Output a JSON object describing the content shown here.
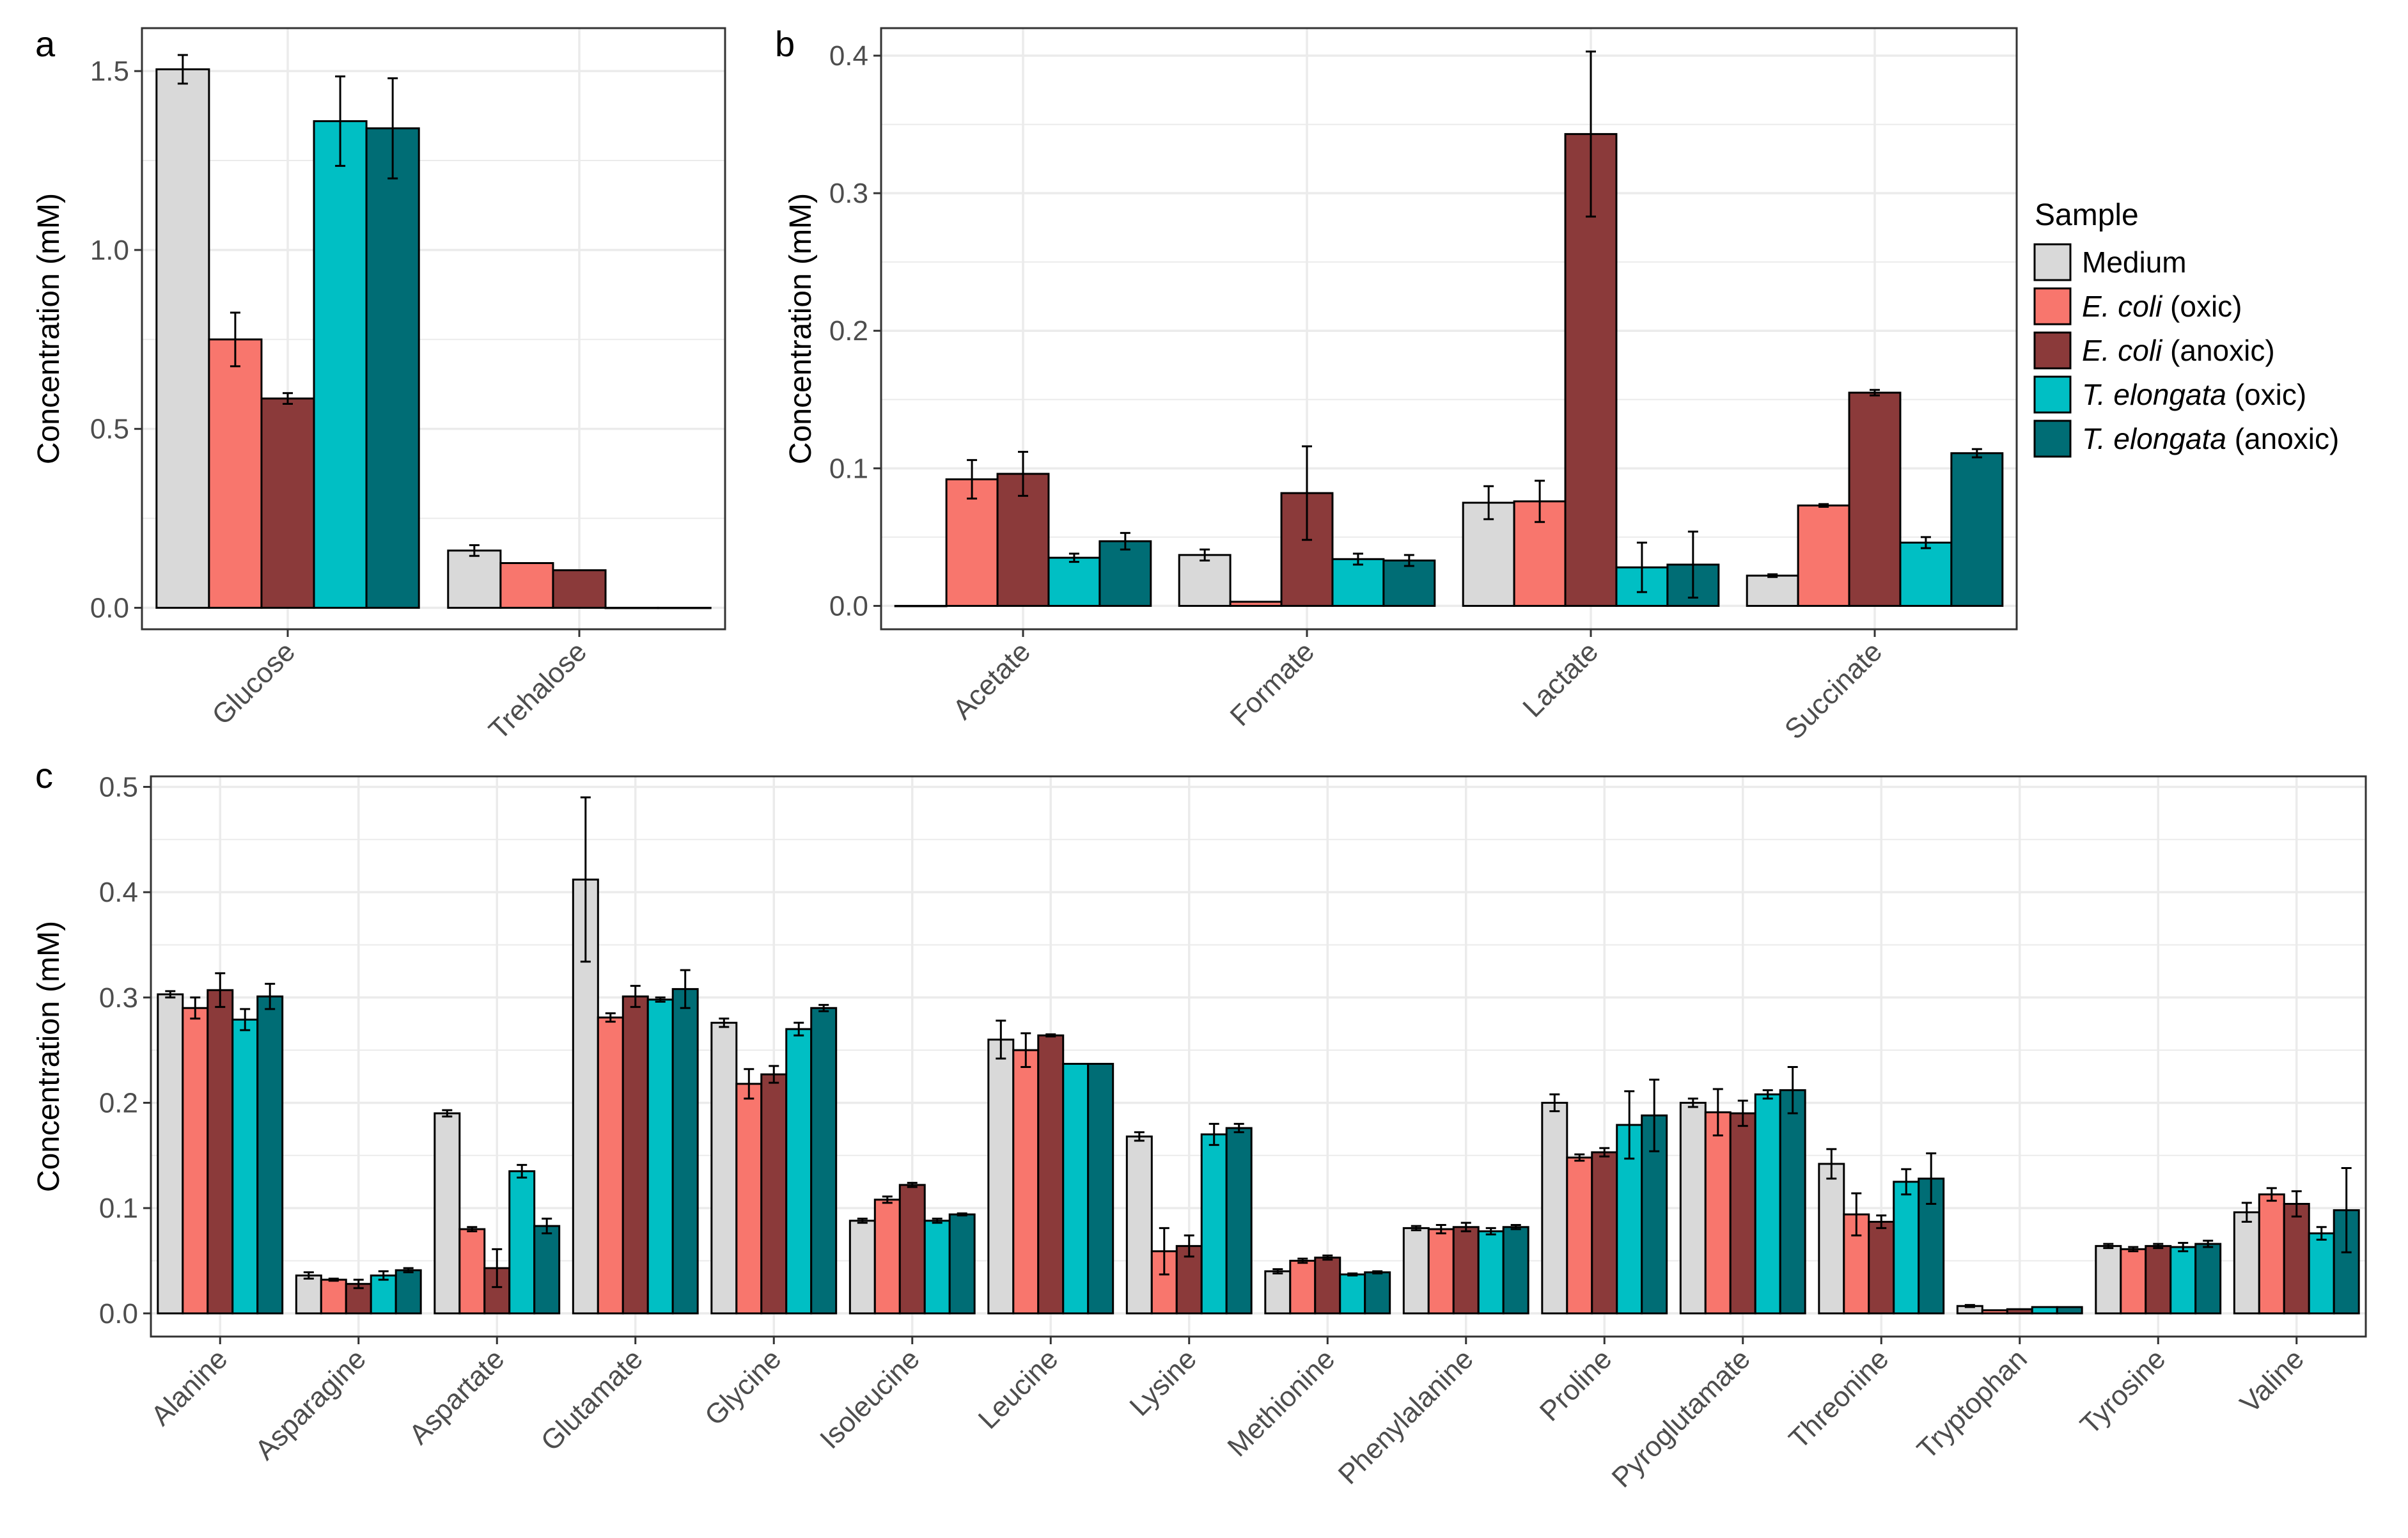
{
  "colors": {
    "Medium": "#d9d9d9",
    "E. coli (oxic)": "#f8766d",
    "E. coli (anoxic)": "#8b3a3a",
    "T. elongata (oxic)": "#00bfc4",
    "T. elongata (anoxic)": "#006d75",
    "grid": "#ebebeb",
    "frame": "#333333",
    "bar_outline": "#000000"
  },
  "legend": {
    "title": "Sample",
    "items": [
      {
        "key": "Medium",
        "italic": "",
        "rest": "Medium"
      },
      {
        "key": "E. coli (oxic)",
        "italic": "E. coli",
        "rest": " (oxic)"
      },
      {
        "key": "E. coli (anoxic)",
        "italic": "E. coli",
        "rest": " (anoxic)"
      },
      {
        "key": "T. elongata (oxic)",
        "italic": "T. elongata",
        "rest": " (oxic)"
      },
      {
        "key": "T. elongata (anoxic)",
        "italic": "T. elongata",
        "rest": " (anoxic)"
      }
    ]
  },
  "chart_data": [
    {
      "panel": "a",
      "type": "bar",
      "ylabel": "Concentration (mM)",
      "ylim": [
        -0.06,
        1.62
      ],
      "yticks": [
        0.0,
        0.5,
        1.0,
        1.5
      ],
      "ytick_labels": [
        "0.0",
        "0.5",
        "1.0",
        "1.5"
      ],
      "categories": [
        "Glucose",
        "Trehalose"
      ],
      "series": [
        {
          "name": "Medium",
          "values": [
            1.505,
            0.16
          ],
          "errors": [
            0.04,
            0.015
          ]
        },
        {
          "name": "E. coli (oxic)",
          "values": [
            0.75,
            0.125
          ],
          "errors": [
            0.075,
            0.0
          ]
        },
        {
          "name": "E. coli (anoxic)",
          "values": [
            0.585,
            0.105
          ],
          "errors": [
            0.015,
            0.0
          ]
        },
        {
          "name": "T. elongata (oxic)",
          "values": [
            1.36,
            0.0
          ],
          "errors": [
            0.125,
            0.0
          ]
        },
        {
          "name": "T. elongata (anoxic)",
          "values": [
            1.34,
            0.0
          ],
          "errors": [
            0.14,
            0.0
          ]
        }
      ]
    },
    {
      "panel": "b",
      "type": "bar",
      "ylabel": "Concentration (mM)",
      "ylim": [
        -0.017,
        0.42
      ],
      "yticks": [
        0.0,
        0.1,
        0.2,
        0.3,
        0.4
      ],
      "ytick_labels": [
        "0.0",
        "0.1",
        "0.2",
        "0.3",
        "0.4"
      ],
      "categories": [
        "Acetate",
        "Formate",
        "Lactate",
        "Succinate"
      ],
      "series": [
        {
          "name": "Medium",
          "values": [
            0.0,
            0.037,
            0.075,
            0.022
          ],
          "errors": [
            0.0,
            0.004,
            0.012,
            0.001
          ]
        },
        {
          "name": "E. coli (oxic)",
          "values": [
            0.092,
            0.003,
            0.076,
            0.073
          ],
          "errors": [
            0.014,
            0.0,
            0.015,
            0.001
          ]
        },
        {
          "name": "E. coli (anoxic)",
          "values": [
            0.096,
            0.082,
            0.343,
            0.155
          ],
          "errors": [
            0.016,
            0.034,
            0.06,
            0.002
          ]
        },
        {
          "name": "T. elongata (oxic)",
          "values": [
            0.035,
            0.034,
            0.028,
            0.046
          ],
          "errors": [
            0.003,
            0.004,
            0.018,
            0.004
          ]
        },
        {
          "name": "T. elongata (anoxic)",
          "values": [
            0.047,
            0.033,
            0.03,
            0.111
          ],
          "errors": [
            0.006,
            0.004,
            0.024,
            0.003
          ]
        }
      ]
    },
    {
      "panel": "c",
      "type": "bar",
      "ylabel": "Concentration (mM)",
      "ylim": [
        -0.022,
        0.51
      ],
      "yticks": [
        0.0,
        0.1,
        0.2,
        0.3,
        0.4,
        0.5
      ],
      "ytick_labels": [
        "0.0",
        "0.1",
        "0.2",
        "0.3",
        "0.4",
        "0.5"
      ],
      "categories": [
        "Alanine",
        "Asparagine",
        "Aspartate",
        "Glutamate",
        "Glycine",
        "Isoleucine",
        "Leucine",
        "Lysine",
        "Methionine",
        "Phenylalanine",
        "Proline",
        "Pyroglutamate",
        "Threonine",
        "Tryptophan",
        "Tyrosine",
        "Valine"
      ],
      "series": [
        {
          "name": "Medium",
          "values": [
            0.303,
            0.036,
            0.19,
            0.412,
            0.276,
            0.088,
            0.26,
            0.168,
            0.04,
            0.081,
            0.2,
            0.2,
            0.142,
            0.007,
            0.064,
            0.096
          ],
          "errors": [
            0.003,
            0.003,
            0.003,
            0.078,
            0.004,
            0.002,
            0.018,
            0.004,
            0.002,
            0.002,
            0.008,
            0.004,
            0.014,
            0.001,
            0.002,
            0.009
          ]
        },
        {
          "name": "E. coli (oxic)",
          "values": [
            0.29,
            0.032,
            0.08,
            0.281,
            0.218,
            0.108,
            0.25,
            0.059,
            0.05,
            0.08,
            0.148,
            0.191,
            0.094,
            0.003,
            0.061,
            0.113
          ],
          "errors": [
            0.01,
            0.001,
            0.002,
            0.004,
            0.014,
            0.003,
            0.016,
            0.022,
            0.002,
            0.004,
            0.003,
            0.022,
            0.02,
            0.0,
            0.002,
            0.006
          ]
        },
        {
          "name": "E. coli (anoxic)",
          "values": [
            0.307,
            0.028,
            0.043,
            0.301,
            0.227,
            0.122,
            0.264,
            0.064,
            0.053,
            0.082,
            0.153,
            0.19,
            0.087,
            0.004,
            0.064,
            0.104
          ],
          "errors": [
            0.016,
            0.004,
            0.018,
            0.01,
            0.008,
            0.002,
            0.001,
            0.01,
            0.002,
            0.004,
            0.004,
            0.012,
            0.006,
            0.0,
            0.002,
            0.012
          ]
        },
        {
          "name": "T. elongata (oxic)",
          "values": [
            0.279,
            0.036,
            0.135,
            0.298,
            0.27,
            0.088,
            0.237,
            0.17,
            0.037,
            0.078,
            0.179,
            0.208,
            0.125,
            0.006,
            0.063,
            0.076
          ],
          "errors": [
            0.01,
            0.004,
            0.006,
            0.002,
            0.006,
            0.002,
            0.0,
            0.01,
            0.001,
            0.003,
            0.032,
            0.004,
            0.012,
            0.0,
            0.004,
            0.006
          ]
        },
        {
          "name": "T. elongata (anoxic)",
          "values": [
            0.301,
            0.041,
            0.083,
            0.308,
            0.29,
            0.094,
            0.237,
            0.176,
            0.039,
            0.082,
            0.188,
            0.212,
            0.128,
            0.006,
            0.066,
            0.098
          ],
          "errors": [
            0.012,
            0.002,
            0.007,
            0.018,
            0.003,
            0.001,
            0.0,
            0.004,
            0.001,
            0.002,
            0.034,
            0.022,
            0.024,
            0.0,
            0.003,
            0.04
          ]
        }
      ]
    }
  ]
}
